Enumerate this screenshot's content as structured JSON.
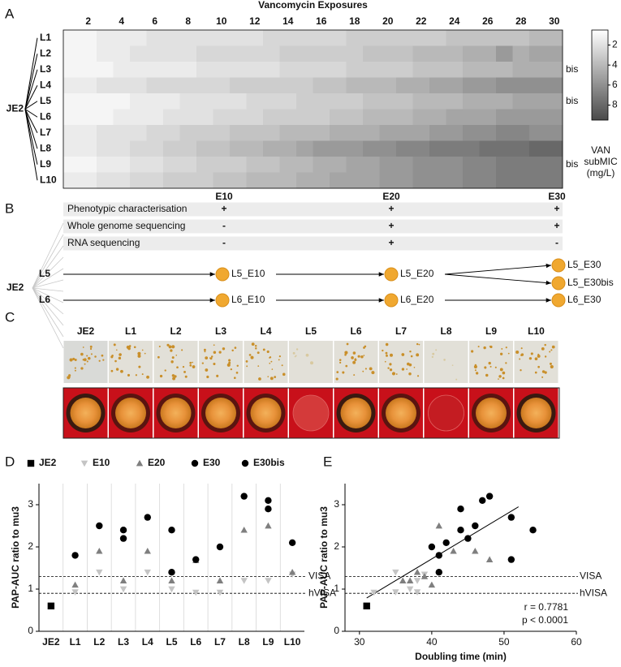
{
  "panel_labels": [
    "A",
    "B",
    "C",
    "D",
    "E"
  ],
  "chart_data": [
    {
      "type": "heatmap",
      "title": "Vancomycin Exposures",
      "root_label": "JE2",
      "categories": [
        "L1",
        "L2",
        "L3",
        "L4",
        "L5",
        "L6",
        "L7",
        "L8",
        "L9",
        "L10"
      ],
      "row_notes": [
        null,
        null,
        "bis",
        null,
        "bis",
        null,
        null,
        null,
        "bis",
        null
      ],
      "x": [
        1,
        2,
        3,
        4,
        5,
        6,
        7,
        8,
        9,
        10,
        11,
        12,
        13,
        14,
        15,
        16,
        17,
        18,
        19,
        20,
        21,
        22,
        23,
        24,
        25,
        26,
        27,
        28,
        29,
        30
      ],
      "xlim": [
        0.5,
        30.5
      ],
      "xticks": [
        2,
        4,
        6,
        8,
        10,
        12,
        14,
        16,
        18,
        20,
        22,
        24,
        26,
        28,
        30
      ],
      "values": [
        [
          1,
          1,
          1.5,
          1.5,
          1.5,
          2,
          2,
          2,
          2,
          2,
          2,
          2,
          2.5,
          2.5,
          2.5,
          2.5,
          2.5,
          3,
          3,
          3,
          3,
          3,
          3,
          3.5,
          3.5,
          3.5,
          3.5,
          3.5,
          4,
          4
        ],
        [
          1,
          1,
          1.5,
          1.5,
          2,
          2,
          2,
          2,
          2.5,
          2.5,
          2.5,
          2.5,
          2.5,
          3,
          3,
          3,
          3,
          3,
          3.5,
          3.5,
          3.5,
          4,
          4,
          4,
          4.5,
          4.5,
          5.5,
          4.5,
          5,
          5
        ],
        [
          1,
          1,
          1,
          1.5,
          1.5,
          1.5,
          1.5,
          1.5,
          2,
          2,
          2,
          2,
          2,
          2.5,
          2.5,
          2.5,
          2.5,
          3,
          3,
          3,
          3,
          3.5,
          3.5,
          3.5,
          4,
          4,
          4,
          4.5,
          4.5,
          4.5
        ],
        [
          1.5,
          1.5,
          2,
          2,
          2,
          2.5,
          2.5,
          2.5,
          2.5,
          2.5,
          3,
          3,
          3,
          3,
          3,
          3.5,
          3.5,
          4,
          4,
          4,
          4.5,
          4.5,
          5,
          5,
          5.5,
          5.5,
          6,
          6,
          6,
          6
        ],
        [
          1,
          1,
          1,
          1,
          1.5,
          1.5,
          1.5,
          2,
          2,
          2,
          2,
          2.5,
          2.5,
          2.5,
          3,
          3,
          3,
          3,
          3.5,
          3.5,
          3.5,
          4,
          4,
          4,
          4.5,
          4.5,
          4.5,
          5,
          5,
          5
        ],
        [
          1,
          1,
          1,
          1.5,
          1.5,
          1.5,
          2,
          2,
          2,
          2.5,
          2.5,
          2.5,
          3,
          3,
          3,
          3,
          3.5,
          3.5,
          4,
          4,
          4,
          4.5,
          4.5,
          5,
          5,
          5,
          5.5,
          5.5,
          5.5,
          5.5
        ],
        [
          1.5,
          1.5,
          2,
          2,
          2,
          2.5,
          2.5,
          3,
          3,
          3,
          3.5,
          3.5,
          3.5,
          4,
          4,
          4,
          4.5,
          4.5,
          4.5,
          5,
          5,
          5,
          5.5,
          5.5,
          6,
          6,
          6.5,
          6.5,
          6,
          6
        ],
        [
          1.5,
          1.5,
          2,
          2,
          2.5,
          2.5,
          3,
          3,
          3.5,
          3.5,
          4,
          4,
          4.5,
          4.5,
          5,
          5.5,
          5.5,
          5.5,
          6,
          6,
          6.5,
          6.5,
          7,
          7,
          7,
          7.5,
          7.5,
          7.5,
          8,
          8
        ],
        [
          1,
          1,
          1.5,
          1.5,
          2,
          2,
          2.5,
          2.5,
          3,
          3,
          3,
          3.5,
          3.5,
          4,
          4,
          4.5,
          4.5,
          5,
          5,
          5.5,
          5.5,
          6,
          6,
          6,
          6.5,
          6.5,
          7,
          7,
          7,
          7
        ],
        [
          1.5,
          1.5,
          2,
          2,
          2.5,
          2.5,
          3,
          3,
          3,
          3.5,
          3.5,
          4,
          4,
          4,
          4.5,
          4.5,
          5,
          5,
          5,
          5.5,
          5.5,
          6,
          6,
          6,
          6.5,
          6.5,
          7,
          7,
          7,
          7
        ]
      ],
      "colorbar": {
        "label": "VAN subMIC (mg/L)",
        "lim": [
          0.5,
          9.5
        ],
        "ticks": [
          2,
          4,
          6,
          8
        ],
        "colors": [
          "#ffffff",
          "#4a4a4a"
        ]
      }
    },
    {
      "type": "dot",
      "categories": [
        "JE2",
        "L1",
        "L2",
        "L3",
        "L4",
        "L5",
        "L6",
        "L7",
        "L8",
        "L9",
        "L10"
      ],
      "series": [
        {
          "name": "JE2",
          "marker": "square",
          "color": "#000000",
          "values": [
            0.6,
            null,
            null,
            null,
            null,
            null,
            null,
            null,
            null,
            null,
            null
          ]
        },
        {
          "name": "E10",
          "marker": "triangle-down",
          "color": "#c4c4c4",
          "values": [
            null,
            0.93,
            1.4,
            1.0,
            1.4,
            1.0,
            0.92,
            0.92,
            1.2,
            1.2,
            1.35
          ]
        },
        {
          "name": "E20",
          "marker": "triangle-up",
          "color": "#7f7f7f",
          "values": [
            null,
            1.1,
            1.9,
            1.2,
            1.9,
            1.2,
            1.68,
            1.2,
            2.4,
            2.5,
            1.4
          ]
        },
        {
          "name": "E30",
          "marker": "circle",
          "color": "#000000",
          "values": [
            null,
            1.8,
            2.5,
            2.2,
            2.7,
            2.4,
            1.7,
            2.0,
            3.2,
            2.9,
            2.1
          ]
        },
        {
          "name": "E30bis",
          "marker": "circle",
          "color": "#000000",
          "values": [
            null,
            null,
            null,
            2.4,
            null,
            1.4,
            null,
            null,
            null,
            3.1,
            null
          ]
        }
      ],
      "ylabel": "PAP-AUC ratio to mu3",
      "ylim": [
        0,
        3.5
      ],
      "yticks": [
        0,
        1,
        2,
        3
      ],
      "separators": true,
      "legend": "top",
      "reference_lines": [
        {
          "value": 1.3,
          "label": "VISA"
        },
        {
          "value": 0.9,
          "label": "hVISA"
        }
      ]
    },
    {
      "type": "scatter",
      "series": [
        {
          "marker": "square",
          "color": "#000000",
          "x": [
            31
          ],
          "y": [
            0.6
          ]
        },
        {
          "marker": "triangle-down",
          "color": "#c4c4c4",
          "x": [
            32,
            35,
            35,
            37,
            38,
            38,
            39
          ],
          "y": [
            0.92,
            0.93,
            1.4,
            1.0,
            0.93,
            1.2,
            1.35
          ]
        },
        {
          "marker": "triangle-up",
          "color": "#7f7f7f",
          "x": [
            36,
            37,
            38,
            40,
            41,
            43,
            46,
            48,
            39
          ],
          "y": [
            1.2,
            1.2,
            1.4,
            1.1,
            2.5,
            1.9,
            1.9,
            1.7,
            1.3
          ]
        },
        {
          "marker": "circle",
          "color": "#000000",
          "x": [
            40,
            41,
            41,
            42,
            44,
            44,
            45,
            46,
            47,
            48,
            51,
            51,
            54
          ],
          "y": [
            2.0,
            1.8,
            1.4,
            2.1,
            2.9,
            2.4,
            2.2,
            2.5,
            3.1,
            3.2,
            2.7,
            1.7,
            2.4
          ]
        }
      ],
      "trendline": {
        "x": [
          31,
          52
        ],
        "y": [
          0.79,
          2.95
        ]
      },
      "annotations": [
        "r = 0.7781",
        "p < 0.0001"
      ],
      "xlabel": "Doubling time (min)",
      "ylabel": "PAP-AUC ratio to mu3",
      "xlim": [
        28,
        60
      ],
      "xticks": [
        30,
        40,
        50,
        60
      ],
      "ylim": [
        0,
        3.5
      ],
      "yticks": [
        0,
        1,
        2,
        3
      ],
      "reference_lines": [
        {
          "value": 1.3,
          "label": "VISA"
        },
        {
          "value": 0.9,
          "label": "hVISA"
        }
      ]
    }
  ],
  "table": {
    "columns": [
      "E10",
      "E20",
      "E30"
    ],
    "rows": [
      {
        "label": "Phenotypic characterisation",
        "cells": [
          "+",
          "+",
          "+"
        ]
      },
      {
        "label": "Whole genome sequencing",
        "cells": [
          "-",
          "+",
          "+"
        ]
      },
      {
        "label": "RNA sequencing",
        "cells": [
          "-",
          "+",
          "-"
        ]
      }
    ]
  },
  "lineage": {
    "root": "JE2",
    "lines": [
      {
        "label": "L5",
        "nodes": [
          "L5_E10",
          "L5_E20",
          "L5_E30",
          "L5_E30bis"
        ]
      },
      {
        "label": "L6",
        "nodes": [
          "L6_E10",
          "L6_E20",
          "L6_E30"
        ]
      }
    ]
  },
  "plates": {
    "labels": [
      "JE2",
      "L1",
      "L2",
      "L3",
      "L4",
      "L5",
      "L6",
      "L7",
      "L8",
      "L9",
      "L10"
    ]
  }
}
